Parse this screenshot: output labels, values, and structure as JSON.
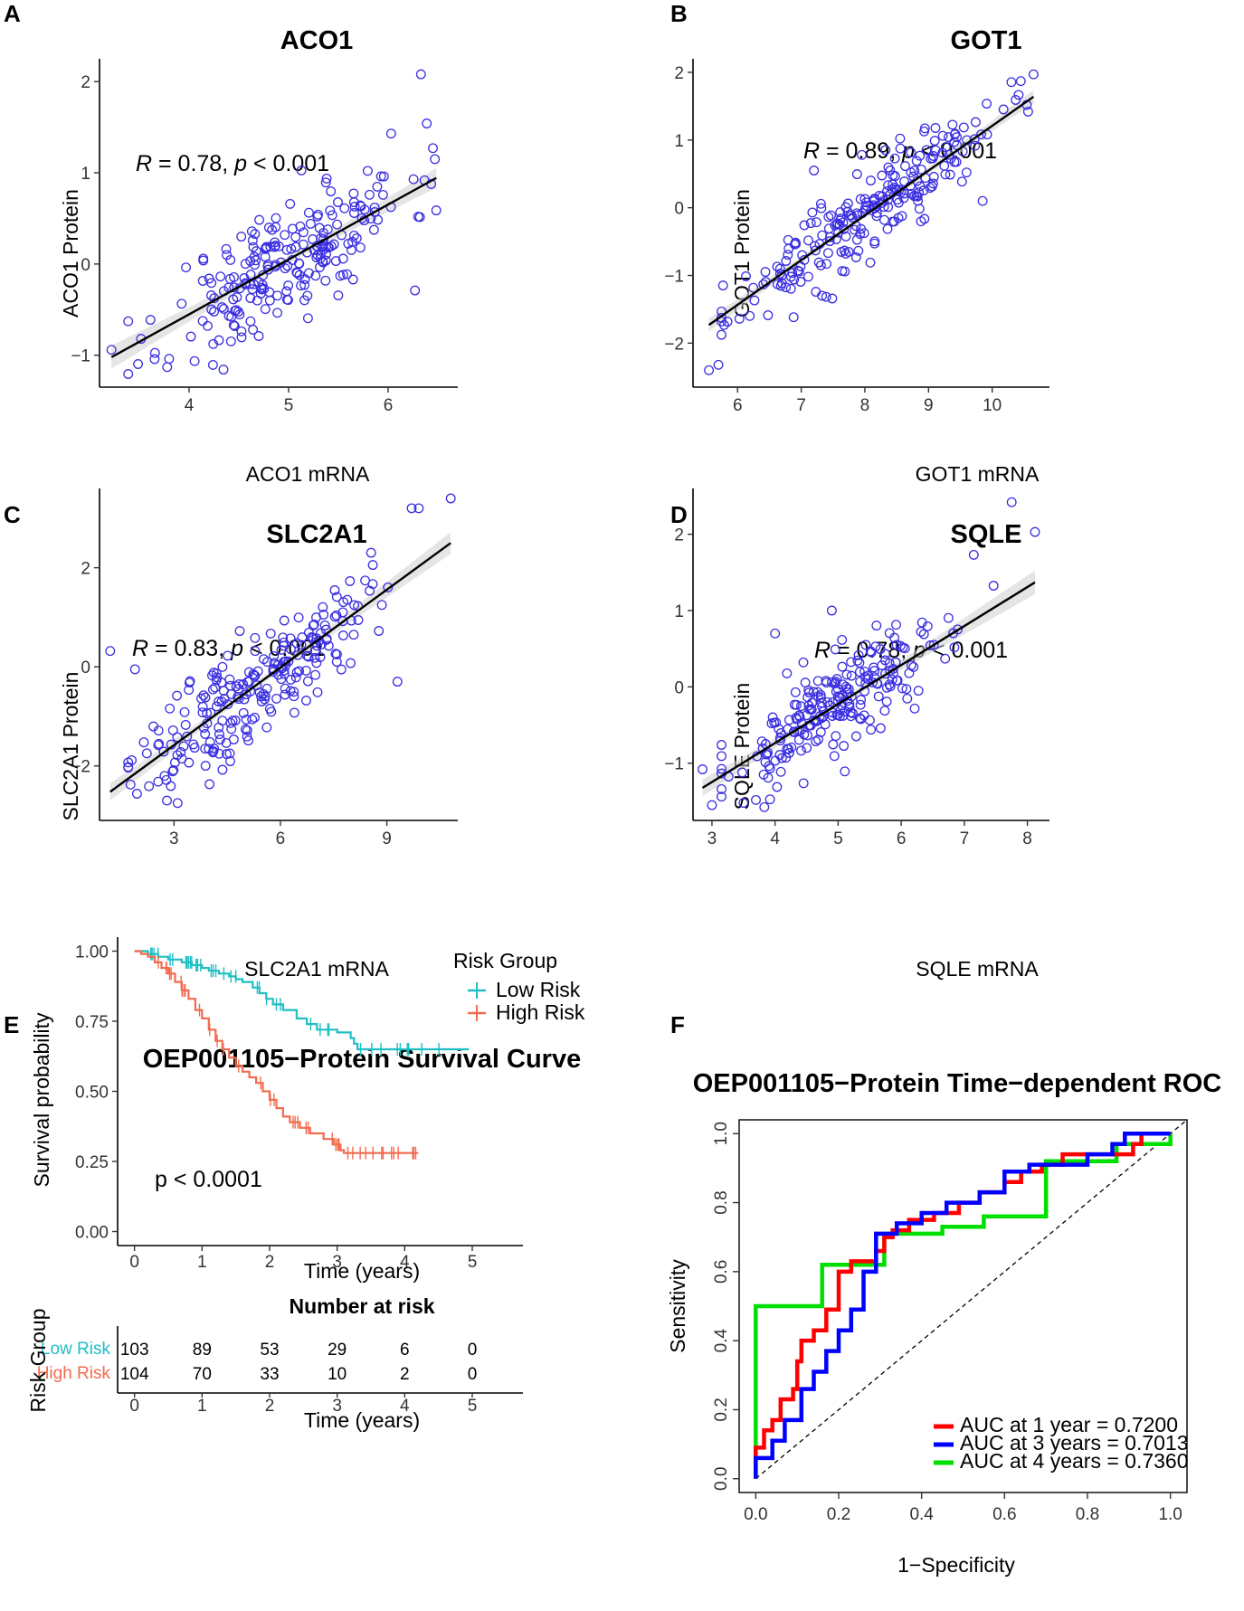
{
  "panels": [
    {
      "letter": "A",
      "title": "ACO1",
      "xlabel": "ACO1 mRNA",
      "ylabel": "ACO1 Protein",
      "stat": {
        "r_label": "R",
        "r_value": " = 0.78, ",
        "p_label": "p",
        "p_value": " < 0.001"
      }
    },
    {
      "letter": "B",
      "title": "GOT1",
      "xlabel": "GOT1 mRNA",
      "ylabel": "GOT1 Protein",
      "stat": {
        "r_label": "R",
        "r_value": " = 0.89, ",
        "p_label": "p",
        "p_value": " < 0.001"
      }
    },
    {
      "letter": "C",
      "title": "SLC2A1",
      "xlabel": "SLC2A1 mRNA",
      "ylabel": "SLC2A1 Protein",
      "stat": {
        "r_label": "R",
        "r_value": " = 0.83, ",
        "p_label": "p",
        "p_value": " < 0.001"
      }
    },
    {
      "letter": "D",
      "title": "SQLE",
      "xlabel": "SQLE mRNA",
      "ylabel": "SQLE Protein",
      "stat": {
        "r_label": "R",
        "r_value": " = 0.78, ",
        "p_label": "p",
        "p_value": " < 0.001"
      }
    },
    {
      "letter": "E",
      "title": "OEP001105−Protein Survival Curve"
    },
    {
      "letter": "F",
      "title": "OEP001105−Protein Time−dependent ROC"
    }
  ],
  "colors": {
    "points": "#3a2fe0",
    "low_risk": "#1fbfc4",
    "high_risk": "#f26b4f",
    "roc_1y": "#ff0000",
    "roc_3y": "#0000ff",
    "roc_4y": "#00e000"
  },
  "chart_data": [
    {
      "type": "scatter",
      "title": "ACO1",
      "xlabel": "ACO1 mRNA",
      "ylabel": "ACO1 Protein",
      "xlim": [
        3.1,
        6.7
      ],
      "ylim": [
        -1.35,
        2.25
      ],
      "xticks": [
        4,
        5,
        6
      ],
      "yticks": [
        -1,
        0,
        1,
        2
      ],
      "fit": {
        "slope": 0.602,
        "intercept": -2.96
      },
      "n": 220,
      "x_mean": 5.0,
      "x_sd": 0.6,
      "resid_sd": 0.33,
      "seed": 11,
      "outliers": [
        [
          6.33,
          2.08
        ],
        [
          6.03,
          1.43
        ],
        [
          6.45,
          1.27
        ],
        [
          6.47,
          1.15
        ],
        [
          3.22,
          -0.94
        ],
        [
          3.78,
          -1.13
        ],
        [
          6.27,
          -0.29
        ],
        [
          4.7,
          -0.79
        ]
      ]
    },
    {
      "type": "scatter",
      "title": "GOT1",
      "xlabel": "GOT1 mRNA",
      "ylabel": "GOT1 Protein",
      "xlim": [
        5.3,
        10.9
      ],
      "ylim": [
        -2.65,
        2.2
      ],
      "xticks": [
        6,
        7,
        8,
        9,
        10
      ],
      "yticks": [
        -2,
        -1,
        0,
        1,
        2
      ],
      "fit": {
        "slope": 0.661,
        "intercept": -5.4
      },
      "n": 230,
      "x_mean": 8.0,
      "x_sd": 1.05,
      "resid_sd": 0.3,
      "seed": 23,
      "outliers": [
        [
          10.65,
          1.97
        ],
        [
          10.45,
          1.87
        ],
        [
          5.55,
          -2.4
        ],
        [
          5.7,
          -2.32
        ],
        [
          9.85,
          0.1
        ],
        [
          7.2,
          0.55
        ]
      ]
    },
    {
      "type": "scatter",
      "title": "SLC2A1",
      "xlabel": "SLC2A1 mRNA",
      "ylabel": "SLC2A1 Protein",
      "xlim": [
        0.9,
        11.0
      ],
      "ylim": [
        -3.1,
        3.6
      ],
      "xticks": [
        3,
        6,
        9
      ],
      "yticks": [
        -2,
        0,
        2
      ],
      "fit": {
        "slope": 0.523,
        "intercept": -3.15
      },
      "n": 230,
      "x_mean": 5.2,
      "x_sd": 1.6,
      "resid_sd": 0.55,
      "seed": 37,
      "outliers": [
        [
          10.8,
          3.4
        ],
        [
          9.7,
          3.2
        ],
        [
          9.9,
          3.2
        ],
        [
          1.2,
          0.32
        ],
        [
          1.9,
          -0.05
        ],
        [
          9.3,
          -0.3
        ],
        [
          2.8,
          -2.7
        ],
        [
          3.1,
          -2.75
        ]
      ]
    },
    {
      "type": "scatter",
      "title": "SQLE",
      "xlabel": "SQLE mRNA",
      "ylabel": "SQLE Protein",
      "xlim": [
        2.7,
        8.35
      ],
      "ylim": [
        -1.75,
        2.6
      ],
      "xticks": [
        3,
        4,
        5,
        6,
        7,
        8
      ],
      "yticks": [
        -1,
        0,
        1,
        2
      ],
      "fit": {
        "slope": 0.511,
        "intercept": -2.78
      },
      "n": 225,
      "x_mean": 5.0,
      "x_sd": 0.9,
      "resid_sd": 0.33,
      "seed": 53,
      "outliers": [
        [
          7.75,
          2.42
        ],
        [
          8.12,
          2.03
        ],
        [
          7.15,
          1.73
        ],
        [
          4.9,
          1.0
        ],
        [
          4.0,
          0.7
        ],
        [
          3.0,
          -1.55
        ],
        [
          3.5,
          -1.52
        ],
        [
          2.85,
          -1.08
        ]
      ]
    },
    {
      "type": "line",
      "subtype": "kaplan-meier",
      "title": "OEP001105−Protein Survival Curve",
      "xlabel": "Time (years)",
      "ylabel": "Survival probability",
      "xlim": [
        -0.25,
        5.75
      ],
      "ylim": [
        -0.05,
        1.05
      ],
      "xticks": [
        0,
        1,
        2,
        3,
        4,
        5
      ],
      "yticks": [
        0.0,
        0.25,
        0.5,
        0.75,
        1.0
      ],
      "ytick_labels": [
        "0.00",
        "0.25",
        "0.50",
        "0.75",
        "1.00"
      ],
      "legend": {
        "title": "Risk Group",
        "position": "top-right"
      },
      "p_text": "p < 0.0001",
      "series": [
        {
          "name": "Low Risk",
          "color": "#1fbfc4",
          "x": [
            0,
            0.2,
            0.35,
            0.5,
            0.7,
            0.85,
            1.0,
            1.1,
            1.25,
            1.4,
            1.5,
            1.6,
            1.75,
            1.85,
            1.95,
            2.05,
            2.2,
            2.4,
            2.55,
            2.7,
            3.0,
            3.2,
            3.25,
            3.3,
            4.95
          ],
          "y": [
            1.0,
            0.99,
            0.98,
            0.97,
            0.96,
            0.95,
            0.94,
            0.93,
            0.92,
            0.91,
            0.9,
            0.89,
            0.87,
            0.85,
            0.83,
            0.81,
            0.79,
            0.76,
            0.74,
            0.72,
            0.71,
            0.69,
            0.67,
            0.65,
            0.65
          ]
        },
        {
          "name": "High Risk",
          "color": "#f26b4f",
          "x": [
            0,
            0.1,
            0.2,
            0.3,
            0.4,
            0.5,
            0.6,
            0.7,
            0.8,
            0.9,
            1.0,
            1.1,
            1.2,
            1.3,
            1.4,
            1.5,
            1.6,
            1.7,
            1.8,
            1.9,
            2.0,
            2.1,
            2.2,
            2.3,
            2.45,
            2.6,
            2.8,
            2.95,
            3.05,
            3.1,
            4.2
          ],
          "y": [
            1.0,
            0.99,
            0.98,
            0.96,
            0.94,
            0.92,
            0.89,
            0.86,
            0.83,
            0.79,
            0.76,
            0.72,
            0.68,
            0.65,
            0.62,
            0.59,
            0.57,
            0.55,
            0.53,
            0.5,
            0.47,
            0.44,
            0.41,
            0.39,
            0.37,
            0.35,
            0.33,
            0.31,
            0.29,
            0.28,
            0.28
          ]
        }
      ],
      "risk_table": {
        "title": "Number at risk",
        "ylabel": "Risk Group",
        "xlabel": "Time (years)",
        "times": [
          0,
          1,
          2,
          3,
          4,
          5
        ],
        "rows": [
          {
            "name": "Low Risk",
            "counts": [
              103,
              89,
              53,
              29,
              6,
              0
            ]
          },
          {
            "name": "High Risk",
            "counts": [
              104,
              70,
              33,
              10,
              2,
              0
            ]
          }
        ]
      }
    },
    {
      "type": "line",
      "subtype": "roc",
      "title": "OEP001105−Protein Time−dependent ROC",
      "xlabel": "1−Specificity",
      "ylabel": "Sensitivity",
      "xlim": [
        -0.04,
        1.04
      ],
      "ylim": [
        -0.04,
        1.04
      ],
      "xticks": [
        0.0,
        0.2,
        0.4,
        0.6,
        0.8,
        1.0
      ],
      "yticks": [
        0.0,
        0.2,
        0.4,
        0.6,
        0.8,
        1.0
      ],
      "tick_labels": [
        "0.0",
        "0.2",
        "0.4",
        "0.6",
        "0.8",
        "1.0"
      ],
      "series": [
        {
          "name": "AUC at 1 year",
          "auc": "0.7200",
          "legend_label": "AUC at 1 year   = 0.7200",
          "color": "#ff0000",
          "points": [
            [
              0,
              0
            ],
            [
              0,
              0.09
            ],
            [
              0.02,
              0.09
            ],
            [
              0.02,
              0.14
            ],
            [
              0.04,
              0.14
            ],
            [
              0.04,
              0.17
            ],
            [
              0.06,
              0.17
            ],
            [
              0.06,
              0.23
            ],
            [
              0.09,
              0.23
            ],
            [
              0.09,
              0.26
            ],
            [
              0.1,
              0.26
            ],
            [
              0.1,
              0.34
            ],
            [
              0.11,
              0.34
            ],
            [
              0.11,
              0.4
            ],
            [
              0.14,
              0.4
            ],
            [
              0.14,
              0.43
            ],
            [
              0.17,
              0.43
            ],
            [
              0.17,
              0.49
            ],
            [
              0.2,
              0.49
            ],
            [
              0.2,
              0.6
            ],
            [
              0.23,
              0.6
            ],
            [
              0.23,
              0.63
            ],
            [
              0.29,
              0.63
            ],
            [
              0.29,
              0.66
            ],
            [
              0.31,
              0.66
            ],
            [
              0.31,
              0.7
            ],
            [
              0.33,
              0.7
            ],
            [
              0.33,
              0.72
            ],
            [
              0.37,
              0.72
            ],
            [
              0.37,
              0.75
            ],
            [
              0.43,
              0.75
            ],
            [
              0.43,
              0.77
            ],
            [
              0.49,
              0.77
            ],
            [
              0.49,
              0.8
            ],
            [
              0.54,
              0.8
            ],
            [
              0.54,
              0.83
            ],
            [
              0.6,
              0.83
            ],
            [
              0.6,
              0.86
            ],
            [
              0.64,
              0.86
            ],
            [
              0.64,
              0.89
            ],
            [
              0.69,
              0.89
            ],
            [
              0.69,
              0.91
            ],
            [
              0.74,
              0.91
            ],
            [
              0.74,
              0.94
            ],
            [
              0.91,
              0.94
            ],
            [
              0.91,
              0.97
            ],
            [
              0.93,
              0.97
            ],
            [
              0.93,
              1.0
            ],
            [
              1,
              1
            ]
          ]
        },
        {
          "name": "AUC at 3 years",
          "auc": "0.7013",
          "legend_label": "AUC at 3 years = 0.7013",
          "color": "#0000ff",
          "points": [
            [
              0,
              0
            ],
            [
              0,
              0.06
            ],
            [
              0.04,
              0.06
            ],
            [
              0.04,
              0.11
            ],
            [
              0.07,
              0.11
            ],
            [
              0.07,
              0.17
            ],
            [
              0.11,
              0.17
            ],
            [
              0.11,
              0.26
            ],
            [
              0.14,
              0.26
            ],
            [
              0.14,
              0.31
            ],
            [
              0.17,
              0.31
            ],
            [
              0.17,
              0.37
            ],
            [
              0.2,
              0.37
            ],
            [
              0.2,
              0.43
            ],
            [
              0.23,
              0.43
            ],
            [
              0.23,
              0.49
            ],
            [
              0.26,
              0.49
            ],
            [
              0.26,
              0.6
            ],
            [
              0.29,
              0.6
            ],
            [
              0.29,
              0.71
            ],
            [
              0.34,
              0.71
            ],
            [
              0.34,
              0.74
            ],
            [
              0.4,
              0.74
            ],
            [
              0.4,
              0.77
            ],
            [
              0.46,
              0.77
            ],
            [
              0.46,
              0.8
            ],
            [
              0.54,
              0.8
            ],
            [
              0.54,
              0.83
            ],
            [
              0.6,
              0.83
            ],
            [
              0.6,
              0.89
            ],
            [
              0.66,
              0.89
            ],
            [
              0.66,
              0.91
            ],
            [
              0.8,
              0.91
            ],
            [
              0.8,
              0.94
            ],
            [
              0.86,
              0.94
            ],
            [
              0.86,
              0.97
            ],
            [
              0.89,
              0.97
            ],
            [
              0.89,
              1.0
            ],
            [
              1,
              1
            ]
          ]
        },
        {
          "name": "AUC at 4 years",
          "auc": "0.7360",
          "legend_label": "AUC at 4 years = 0.7360",
          "color": "#00e000",
          "points": [
            [
              0,
              0
            ],
            [
              0,
              0.5
            ],
            [
              0.16,
              0.5
            ],
            [
              0.16,
              0.62
            ],
            [
              0.31,
              0.62
            ],
            [
              0.31,
              0.71
            ],
            [
              0.45,
              0.71
            ],
            [
              0.45,
              0.73
            ],
            [
              0.55,
              0.73
            ],
            [
              0.55,
              0.76
            ],
            [
              0.7,
              0.76
            ],
            [
              0.7,
              0.92
            ],
            [
              0.87,
              0.92
            ],
            [
              0.87,
              0.97
            ],
            [
              1,
              0.97
            ],
            [
              1,
              1
            ]
          ]
        }
      ]
    }
  ]
}
